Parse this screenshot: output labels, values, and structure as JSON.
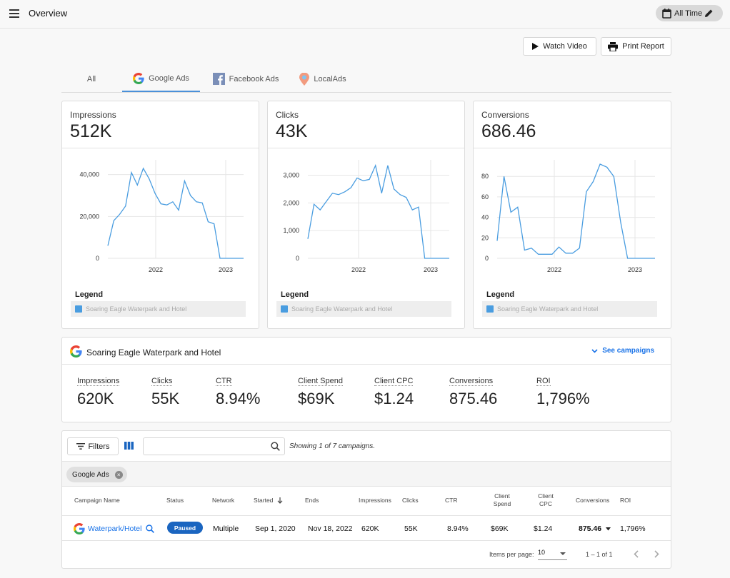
{
  "header": {
    "title": "Overview",
    "date_range": "All Time"
  },
  "actions": {
    "watch_video": "Watch Video",
    "print_report": "Print Report"
  },
  "tabs": [
    {
      "label": "All",
      "icon": "none"
    },
    {
      "label": "Google Ads",
      "icon": "google-logo-icon",
      "active": true
    },
    {
      "label": "Facebook Ads",
      "icon": "facebook-logo-icon"
    },
    {
      "label": "LocalAds",
      "icon": "map-pin-icon"
    }
  ],
  "metric_cards": [
    {
      "label": "Impressions",
      "value": "512K"
    },
    {
      "label": "Clicks",
      "value": "43K"
    },
    {
      "label": "Conversions",
      "value": "686.46"
    }
  ],
  "legend": {
    "title": "Legend",
    "item": "Soaring Eagle Waterpark and Hotel"
  },
  "colors": {
    "series": "#4a9de0",
    "accent": "#1a73e8",
    "badge": "#1a65c0"
  },
  "chart_data": [
    {
      "type": "line",
      "ylim": [
        0,
        45000
      ],
      "yticks": [
        "40,000",
        "20,000",
        "0"
      ],
      "xticks": [
        "2022",
        "2023"
      ],
      "series": [
        {
          "name": "Soaring Eagle Waterpark and Hotel",
          "values": [
            6000,
            18000,
            21000,
            25000,
            41000,
            35000,
            43000,
            38000,
            31000,
            26000,
            25500,
            27000,
            23000,
            37000,
            30000,
            27000,
            26500,
            17500,
            16500,
            0,
            0,
            0,
            0,
            0
          ]
        }
      ]
    },
    {
      "type": "line",
      "ylim": [
        0,
        3400
      ],
      "yticks": [
        "3,000",
        "2,000",
        "1,000",
        "0"
      ],
      "xticks": [
        "2022",
        "2023"
      ],
      "series": [
        {
          "name": "Soaring Eagle Waterpark and Hotel",
          "values": [
            700,
            1950,
            1750,
            2050,
            2350,
            2300,
            2400,
            2550,
            2900,
            2800,
            2850,
            3350,
            2350,
            3350,
            2500,
            2300,
            2200,
            1750,
            1850,
            0,
            0,
            0,
            0,
            0
          ]
        }
      ]
    },
    {
      "type": "line",
      "ylim": [
        0,
        92
      ],
      "yticks": [
        "80",
        "60",
        "40",
        "20",
        "0"
      ],
      "xticks": [
        "2022",
        "2023"
      ],
      "series": [
        {
          "name": "Soaring Eagle Waterpark and Hotel",
          "values": [
            17,
            80,
            45,
            50,
            8,
            10,
            4,
            4,
            4,
            11,
            5,
            5,
            10,
            65,
            75,
            92,
            89,
            80,
            35,
            0,
            0,
            0,
            0,
            0
          ]
        }
      ]
    }
  ],
  "summary": {
    "title": "Soaring Eagle Waterpark and Hotel",
    "see_campaigns": "See campaigns",
    "stats": [
      {
        "label": "Impressions",
        "value": "620K"
      },
      {
        "label": "Clicks",
        "value": "55K"
      },
      {
        "label": "CTR",
        "value": "8.94%"
      },
      {
        "label": "Client Spend",
        "value": "$69K"
      },
      {
        "label": "Client CPC",
        "value": "$1.24"
      },
      {
        "label": "Conversions",
        "value": "875.46"
      },
      {
        "label": "ROI",
        "value": "1,796%"
      }
    ]
  },
  "table": {
    "filters_label": "Filters",
    "search_placeholder": "",
    "showing": "Showing 1 of 7 campaigns.",
    "chip": "Google Ads",
    "headers": {
      "campaign": "Campaign Name",
      "status": "Status",
      "network": "Network",
      "started": "Started",
      "ends": "Ends",
      "impressions": "Impressions",
      "clicks": "Clicks",
      "ctr": "CTR",
      "client_spend_1": "Client",
      "client_spend_2": "Spend",
      "client_cpc_1": "Client",
      "client_cpc_2": "CPC",
      "conversions": "Conversions",
      "roi": "ROI"
    },
    "row": {
      "campaign": "Waterpark/Hotel",
      "status": "Paused",
      "network": "Multiple",
      "started": "Sep 1, 2020",
      "ends": "Nov 18, 2022",
      "impressions": "620K",
      "clicks": "55K",
      "ctr": "8.94%",
      "client_spend": "$69K",
      "client_cpc": "$1.24",
      "conversions": "875.46",
      "roi": "1,796%"
    },
    "pager": {
      "items_label": "Items per page:",
      "per_page": "10",
      "range": "1 – 1 of 1"
    }
  }
}
